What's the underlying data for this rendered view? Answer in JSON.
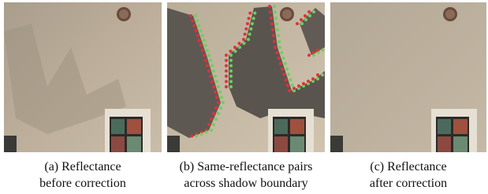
{
  "panels": [
    {
      "caption_lines": [
        "(a) Reflectance",
        "before correction"
      ]
    },
    {
      "caption_lines": [
        "(b) Same-reflectance pairs",
        "across shadow boundary"
      ]
    },
    {
      "caption_lines": [
        "(c) Reflectance",
        "after correction"
      ]
    }
  ]
}
